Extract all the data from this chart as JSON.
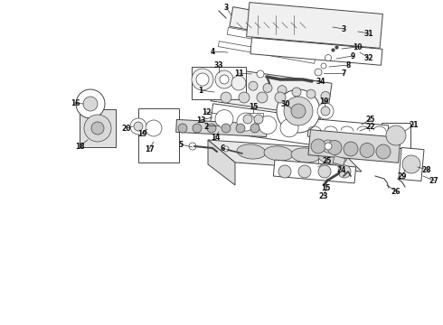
{
  "background_color": "#ffffff",
  "fig_width": 4.9,
  "fig_height": 3.6,
  "dpi": 100,
  "line_color": "#444444",
  "label_color": "#111111",
  "label_fontsize": 5.5,
  "lw_main": 0.7,
  "lw_thin": 0.5,
  "fc_part": "#f0f0f0",
  "fc_dark": "#d8d8d8",
  "fc_white": "#ffffff"
}
